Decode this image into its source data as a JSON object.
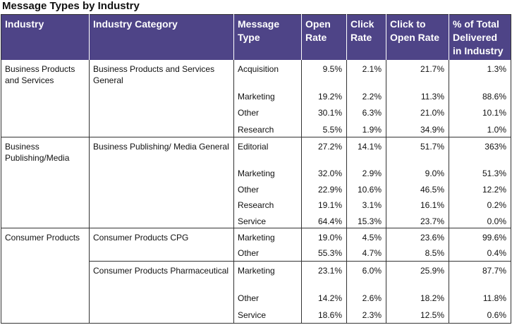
{
  "title": "Message Types by Industry",
  "headers": [
    "Industry",
    "Industry Category",
    "Message Type",
    "Open Rate",
    "Click Rate",
    "Click to Open Rate",
    "% of Total Delivered in Industry"
  ],
  "groups": [
    {
      "industry": "Business Products and Services",
      "categories": [
        {
          "name": "Business Products and Services General",
          "rows": [
            {
              "type": "Acquisition",
              "open": "9.5%",
              "click": "2.1%",
              "cto": "21.7%",
              "pct": "1.3%"
            },
            {
              "type": "Marketing",
              "open": "19.2%",
              "click": "2.2%",
              "cto": "11.3%",
              "pct": "88.6%"
            },
            {
              "type": "Other",
              "open": "30.1%",
              "click": "6.3%",
              "cto": "21.0%",
              "pct": "10.1%"
            },
            {
              "type": "Research",
              "open": "5.5%",
              "click": "1.9%",
              "cto": "34.9%",
              "pct": "1.0%"
            }
          ]
        }
      ]
    },
    {
      "industry": "Business Publishing/Media",
      "categories": [
        {
          "name": "Business Publishing/ Media General",
          "rows": [
            {
              "type": "Editorial",
              "open": "27.2%",
              "click": "14.1%",
              "cto": "51.7%",
              "pct": "363%"
            },
            {
              "type": "Marketing",
              "open": "32.0%",
              "click": "2.9%",
              "cto": "9.0%",
              "pct": "51.3%"
            },
            {
              "type": "Other",
              "open": "22.9%",
              "click": "10.6%",
              "cto": "46.5%",
              "pct": "12.2%"
            },
            {
              "type": "Research",
              "open": "19.1%",
              "click": "3.1%",
              "cto": "16.1%",
              "pct": "0.2%"
            },
            {
              "type": "Service",
              "open": "64.4%",
              "click": "15.3%",
              "cto": "23.7%",
              "pct": "0.0%"
            }
          ]
        }
      ]
    },
    {
      "industry": "Consumer Products",
      "categories": [
        {
          "name": "Consumer Products CPG",
          "rows": [
            {
              "type": "Marketing",
              "open": "19.0%",
              "click": "4.5%",
              "cto": "23.6%",
              "pct": "99.6%"
            },
            {
              "type": "Other",
              "open": "55.3%",
              "click": "4.7%",
              "cto": "8.5%",
              "pct": "0.4%"
            }
          ]
        },
        {
          "name": "Consumer Products Pharmaceutical",
          "rows": [
            {
              "type": "Marketing",
              "open": "23.1%",
              "click": "6.0%",
              "cto": "25.9%",
              "pct": "87.7%"
            },
            {
              "type": "Other",
              "open": "14.2%",
              "click": "2.6%",
              "cto": "18.2%",
              "pct": "11.8%"
            },
            {
              "type": "Service",
              "open": "18.6%",
              "click": "2.3%",
              "cto": "12.5%",
              "pct": "0.6%"
            }
          ]
        }
      ]
    }
  ]
}
